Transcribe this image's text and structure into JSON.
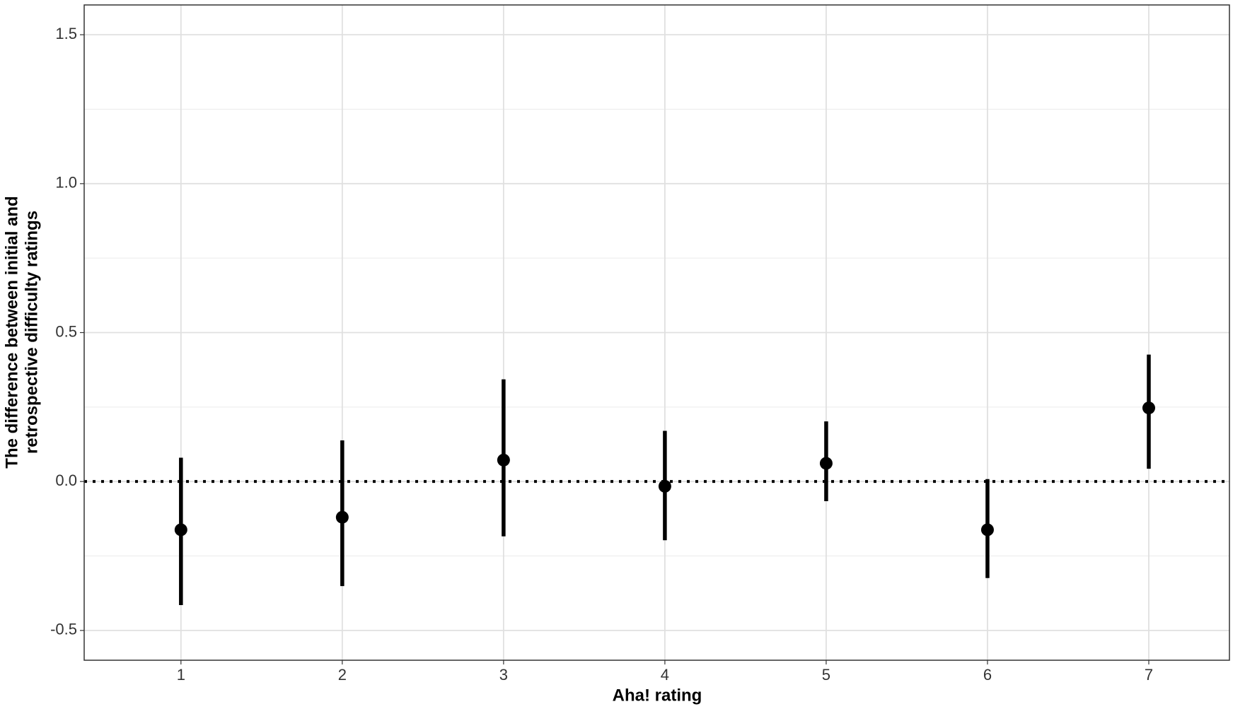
{
  "chart_data": {
    "type": "pointrange",
    "x_label": "Aha! rating",
    "y_label": [
      "The difference between initial and",
      "retrospective difficulty ratings"
    ],
    "x": [
      1,
      2,
      3,
      4,
      5,
      6,
      7
    ],
    "values": [
      -0.162,
      -0.12,
      0.072,
      -0.016,
      0.061,
      -0.162,
      0.247
    ],
    "lower": [
      -0.415,
      -0.351,
      -0.184,
      -0.197,
      -0.066,
      -0.324,
      0.043
    ],
    "upper": [
      0.08,
      0.138,
      0.343,
      0.17,
      0.202,
      0.008,
      0.426
    ],
    "color": "#000000",
    "xlim": [
      0.4,
      7.5
    ],
    "xticks": [
      1,
      2,
      3,
      4,
      5,
      6,
      7
    ],
    "ylim": [
      -0.6,
      1.6
    ],
    "yticks": [
      -0.5,
      {
        "value": 0,
        "label": "0.0"
      },
      0.5,
      {
        "value": 1,
        "label": "1.0"
      },
      1.5
    ],
    "y_minor_grid": [
      -0.25,
      0.25,
      0.75,
      1.25
    ],
    "reference_line": 0,
    "grid": true
  }
}
